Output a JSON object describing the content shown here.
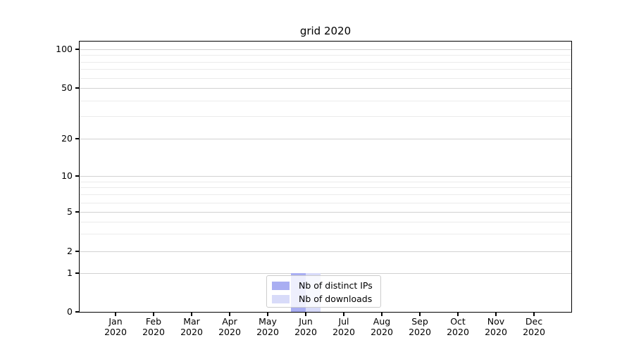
{
  "chart_data": {
    "type": "bar",
    "title": "grid 2020",
    "categories": [
      "Jan 2020",
      "Feb 2020",
      "Mar 2020",
      "Apr 2020",
      "May 2020",
      "Jun 2020",
      "Jul 2020",
      "Aug 2020",
      "Sep 2020",
      "Oct 2020",
      "Nov 2020",
      "Dec 2020"
    ],
    "x_tick_months": [
      "Jan",
      "Feb",
      "Mar",
      "Apr",
      "May",
      "Jun",
      "Jul",
      "Aug",
      "Sep",
      "Oct",
      "Nov",
      "Dec"
    ],
    "x_tick_year": "2020",
    "series": [
      {
        "name": "Nb of distinct IPs",
        "color": "#a9aef2",
        "values": [
          0,
          0,
          0,
          0,
          0,
          1,
          0,
          0,
          0,
          0,
          0,
          0
        ]
      },
      {
        "name": "Nb of downloads",
        "color": "#d8dbf9",
        "values": [
          0,
          0,
          0,
          0,
          0,
          1,
          0,
          0,
          0,
          0,
          0,
          0
        ]
      }
    ],
    "yscale": "symlog",
    "y_ticks": [
      0,
      1,
      2,
      5,
      10,
      20,
      50,
      100
    ],
    "y_minor_ticks": [
      3,
      4,
      6,
      7,
      8,
      9,
      30,
      40,
      60,
      70,
      80,
      90
    ],
    "ylim": [
      0,
      115
    ],
    "grid": true,
    "legend_position": "lower center",
    "colors": {
      "major_grid": "#d2d2d2",
      "minor_grid": "#ebebeb",
      "axis": "#000000",
      "legend_border": "#cccccc"
    }
  }
}
